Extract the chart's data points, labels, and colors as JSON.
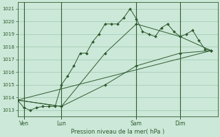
{
  "background_color": "#cce8d8",
  "grid_color": "#9ec8b0",
  "line_color": "#2d5a2d",
  "marker_color": "#2d5a2d",
  "xlabel": "Pression niveau de la mer( hPa )",
  "ylim": [
    1012.5,
    1021.5
  ],
  "yticks": [
    1013,
    1014,
    1015,
    1016,
    1017,
    1018,
    1019,
    1020,
    1021
  ],
  "day_labels": [
    "Ven",
    "Lun",
    "Sam",
    "Dim"
  ],
  "day_positions": [
    1,
    7,
    19,
    26
  ],
  "xlim": [
    0,
    32
  ],
  "series1_x": [
    0,
    1,
    2,
    3,
    4,
    5,
    6,
    7,
    8,
    9,
    10,
    11,
    12,
    13,
    14,
    15,
    16,
    17,
    18,
    19,
    20,
    21,
    22,
    23,
    24,
    25,
    26,
    27,
    28,
    29,
    30,
    31
  ],
  "series1_y": [
    1013.8,
    1013.2,
    1013.0,
    1013.2,
    1013.3,
    1013.3,
    1013.3,
    1015.0,
    1015.7,
    1016.5,
    1017.5,
    1017.5,
    1018.4,
    1019.0,
    1019.8,
    1019.8,
    1019.8,
    1020.3,
    1021.0,
    1020.2,
    1019.2,
    1019.0,
    1018.8,
    1019.5,
    1019.8,
    1019.2,
    1018.8,
    1019.0,
    1019.3,
    1018.5,
    1017.8,
    1017.7
  ],
  "series2_x": [
    0,
    7,
    14,
    19,
    26,
    31
  ],
  "series2_y": [
    1013.8,
    1013.3,
    1017.5,
    1019.8,
    1018.8,
    1017.7
  ],
  "series3_x": [
    0,
    7,
    14,
    19,
    26,
    31
  ],
  "series3_y": [
    1013.8,
    1013.3,
    1015.0,
    1016.5,
    1017.5,
    1017.7
  ],
  "series4_x": [
    0,
    31
  ],
  "series4_y": [
    1013.8,
    1017.7
  ]
}
